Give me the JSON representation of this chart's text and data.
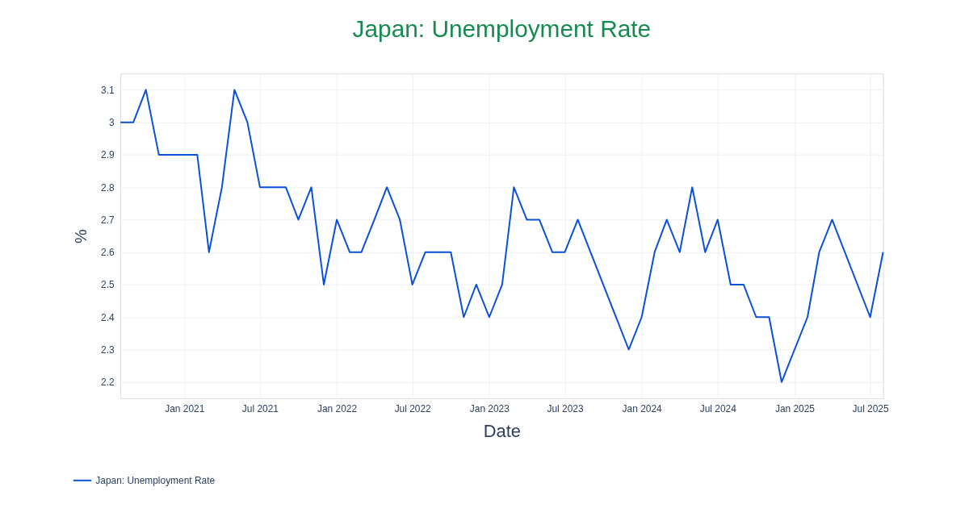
{
  "chart_data": {
    "type": "line",
    "title": "Japan: Unemployment Rate",
    "xlabel": "Date",
    "ylabel": "%",
    "x": [
      "2020-08",
      "2020-09",
      "2020-10",
      "2020-11",
      "2020-12",
      "2021-01",
      "2021-02",
      "2021-03",
      "2021-04",
      "2021-05",
      "2021-06",
      "2021-07",
      "2021-08",
      "2021-09",
      "2021-10",
      "2021-11",
      "2021-12",
      "2022-01",
      "2022-02",
      "2022-03",
      "2022-04",
      "2022-05",
      "2022-06",
      "2022-07",
      "2022-08",
      "2022-09",
      "2022-10",
      "2022-11",
      "2022-12",
      "2023-01",
      "2023-02",
      "2023-03",
      "2023-04",
      "2023-05",
      "2023-06",
      "2023-07",
      "2023-08",
      "2023-12",
      "2024-01",
      "2024-02",
      "2024-03",
      "2024-04",
      "2024-05",
      "2024-06",
      "2024-07",
      "2024-08",
      "2024-09",
      "2024-10",
      "2024-11",
      "2024-12",
      "2025-02",
      "2025-03",
      "2025-04",
      "2025-07",
      "2025-08"
    ],
    "series": [
      {
        "name": "Japan: Unemployment Rate",
        "color": "#0a50d8",
        "values": [
          3.0,
          3.0,
          3.1,
          2.9,
          2.9,
          2.9,
          2.9,
          2.6,
          2.8,
          3.1,
          3.0,
          2.8,
          2.8,
          2.8,
          2.7,
          2.8,
          2.5,
          2.7,
          2.6,
          2.6,
          2.7,
          2.8,
          2.7,
          2.5,
          2.6,
          2.6,
          2.6,
          2.4,
          2.5,
          2.4,
          2.5,
          2.8,
          2.7,
          2.7,
          2.6,
          2.6,
          2.7,
          2.3,
          2.4,
          2.6,
          2.7,
          2.6,
          2.8,
          2.6,
          2.7,
          2.5,
          2.5,
          2.4,
          2.4,
          2.2,
          2.4,
          2.6,
          2.7,
          2.4,
          2.6
        ]
      }
    ],
    "xlim": [
      "2020-08",
      "2025-08"
    ],
    "xticks": [
      {
        "value": "2021-01",
        "label": "Jan 2021"
      },
      {
        "value": "2021-07",
        "label": "Jul 2021"
      },
      {
        "value": "2022-01",
        "label": "Jan 2022"
      },
      {
        "value": "2022-07",
        "label": "Jul 2022"
      },
      {
        "value": "2023-01",
        "label": "Jan 2023"
      },
      {
        "value": "2023-07",
        "label": "Jul 2023"
      },
      {
        "value": "2024-01",
        "label": "Jan 2024"
      },
      {
        "value": "2024-07",
        "label": "Jul 2024"
      },
      {
        "value": "2025-01",
        "label": "Jan 2025"
      },
      {
        "value": "2025-07",
        "label": "Jul 2025"
      }
    ],
    "ylim": [
      2.15,
      3.15
    ],
    "yticks": [
      2.2,
      2.3,
      2.4,
      2.5,
      2.6,
      2.7,
      2.8,
      2.9,
      3,
      3.1
    ],
    "grid": true,
    "legend": "bottom left",
    "marker": "none",
    "line_style": "solid"
  }
}
